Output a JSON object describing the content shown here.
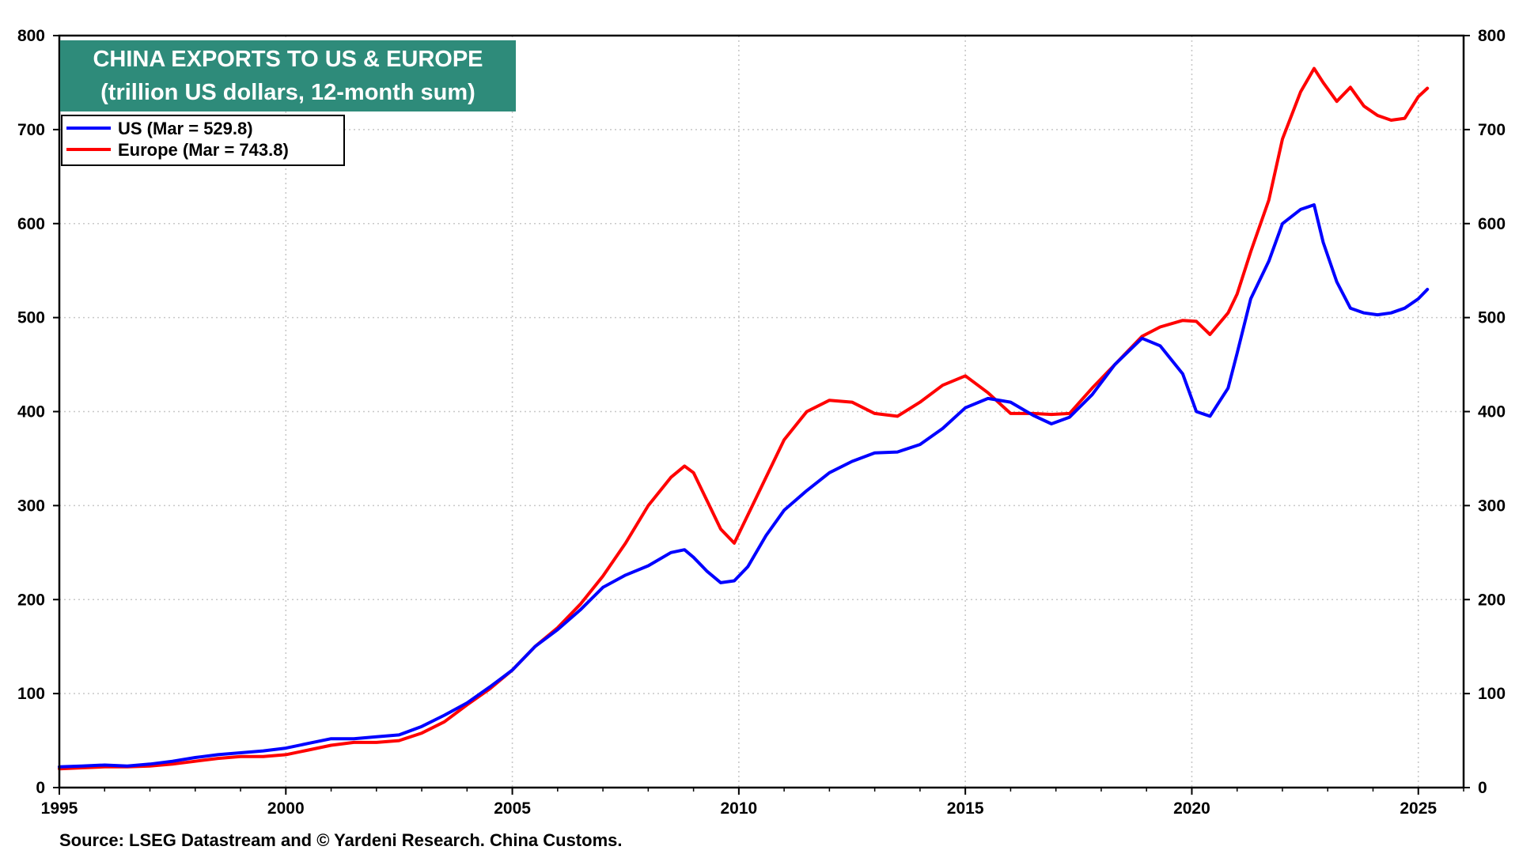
{
  "colors": {
    "us": "#0000ff",
    "europe": "#ff0000",
    "title_bg": "#2e8b7a",
    "grid": "#c8c8c8"
  },
  "chart_data": {
    "type": "line",
    "title": "CHINA EXPORTS TO US & EUROPE",
    "subtitle": "(trillion US dollars, 12-month sum)",
    "xlabel": "",
    "ylabel": "",
    "xlim": [
      1995,
      2026
    ],
    "ylim": [
      0,
      800
    ],
    "x_ticks": [
      "1995",
      "2000",
      "2005",
      "2010",
      "2015",
      "2020",
      "2025"
    ],
    "y_ticks": [
      "0",
      "100",
      "200",
      "300",
      "400",
      "500",
      "600",
      "700",
      "800"
    ],
    "grid": true,
    "legend_position": "top-left",
    "source": "Source: LSEG Datastream and © Yardeni Research. China Customs.",
    "series": [
      {
        "name": "US",
        "legend_label": "US (Mar = 529.8)",
        "color": "#0000ff",
        "x": [
          1995.0,
          1995.5,
          1996.0,
          1996.5,
          1997.0,
          1997.5,
          1998.0,
          1998.5,
          1999.0,
          1999.5,
          2000.0,
          2000.5,
          2001.0,
          2001.5,
          2002.0,
          2002.5,
          2003.0,
          2003.5,
          2004.0,
          2004.5,
          2005.0,
          2005.5,
          2006.0,
          2006.5,
          2007.0,
          2007.5,
          2008.0,
          2008.5,
          2008.8,
          2009.0,
          2009.3,
          2009.6,
          2009.9,
          2010.2,
          2010.6,
          2011.0,
          2011.5,
          2012.0,
          2012.5,
          2013.0,
          2013.5,
          2014.0,
          2014.5,
          2015.0,
          2015.5,
          2016.0,
          2016.5,
          2016.9,
          2017.3,
          2017.8,
          2018.3,
          2018.9,
          2019.3,
          2019.8,
          2020.1,
          2020.4,
          2020.8,
          2021.0,
          2021.3,
          2021.7,
          2022.0,
          2022.4,
          2022.7,
          2022.9,
          2023.2,
          2023.5,
          2023.8,
          2024.1,
          2024.4,
          2024.7,
          2025.0,
          2025.2
        ],
        "values": [
          22,
          23,
          24,
          23,
          25,
          28,
          32,
          35,
          37,
          39,
          42,
          47,
          52,
          52,
          54,
          56,
          65,
          77,
          90,
          107,
          125,
          150,
          168,
          189,
          213,
          226,
          236,
          250,
          253,
          245,
          230,
          218,
          220,
          235,
          268,
          295,
          316,
          335,
          347,
          356,
          357,
          365,
          382,
          404,
          414,
          410,
          396,
          387,
          394,
          418,
          450,
          478,
          470,
          440,
          400,
          395,
          425,
          462,
          520,
          560,
          600,
          615,
          620,
          580,
          538,
          510,
          505,
          503,
          505,
          510,
          520,
          530
        ]
      },
      {
        "name": "Europe",
        "legend_label": "Europe  (Mar = 743.8)",
        "color": "#ff0000",
        "x": [
          1995.0,
          1995.5,
          1996.0,
          1996.5,
          1997.0,
          1997.5,
          1998.0,
          1998.5,
          1999.0,
          1999.5,
          2000.0,
          2000.5,
          2001.0,
          2001.5,
          2002.0,
          2002.5,
          2003.0,
          2003.5,
          2004.0,
          2004.5,
          2005.0,
          2005.5,
          2006.0,
          2006.5,
          2007.0,
          2007.5,
          2008.0,
          2008.5,
          2008.8,
          2009.0,
          2009.3,
          2009.6,
          2009.9,
          2010.2,
          2010.6,
          2011.0,
          2011.5,
          2012.0,
          2012.5,
          2013.0,
          2013.5,
          2014.0,
          2014.5,
          2015.0,
          2015.5,
          2016.0,
          2016.5,
          2016.9,
          2017.3,
          2017.8,
          2018.3,
          2018.9,
          2019.3,
          2019.8,
          2020.1,
          2020.4,
          2020.8,
          2021.0,
          2021.3,
          2021.7,
          2022.0,
          2022.4,
          2022.7,
          2022.9,
          2023.2,
          2023.5,
          2023.8,
          2024.1,
          2024.4,
          2024.7,
          2025.0,
          2025.2
        ],
        "values": [
          20,
          21,
          22,
          22,
          23,
          25,
          28,
          31,
          33,
          33,
          35,
          40,
          45,
          48,
          48,
          50,
          58,
          70,
          88,
          105,
          125,
          150,
          170,
          195,
          225,
          260,
          300,
          330,
          342,
          335,
          305,
          275,
          260,
          290,
          330,
          370,
          400,
          412,
          410,
          398,
          395,
          410,
          428,
          438,
          420,
          398,
          398,
          397,
          398,
          425,
          450,
          480,
          490,
          497,
          496,
          482,
          505,
          525,
          570,
          625,
          690,
          740,
          765,
          750,
          730,
          745,
          725,
          715,
          710,
          712,
          735,
          744
        ]
      }
    ]
  }
}
